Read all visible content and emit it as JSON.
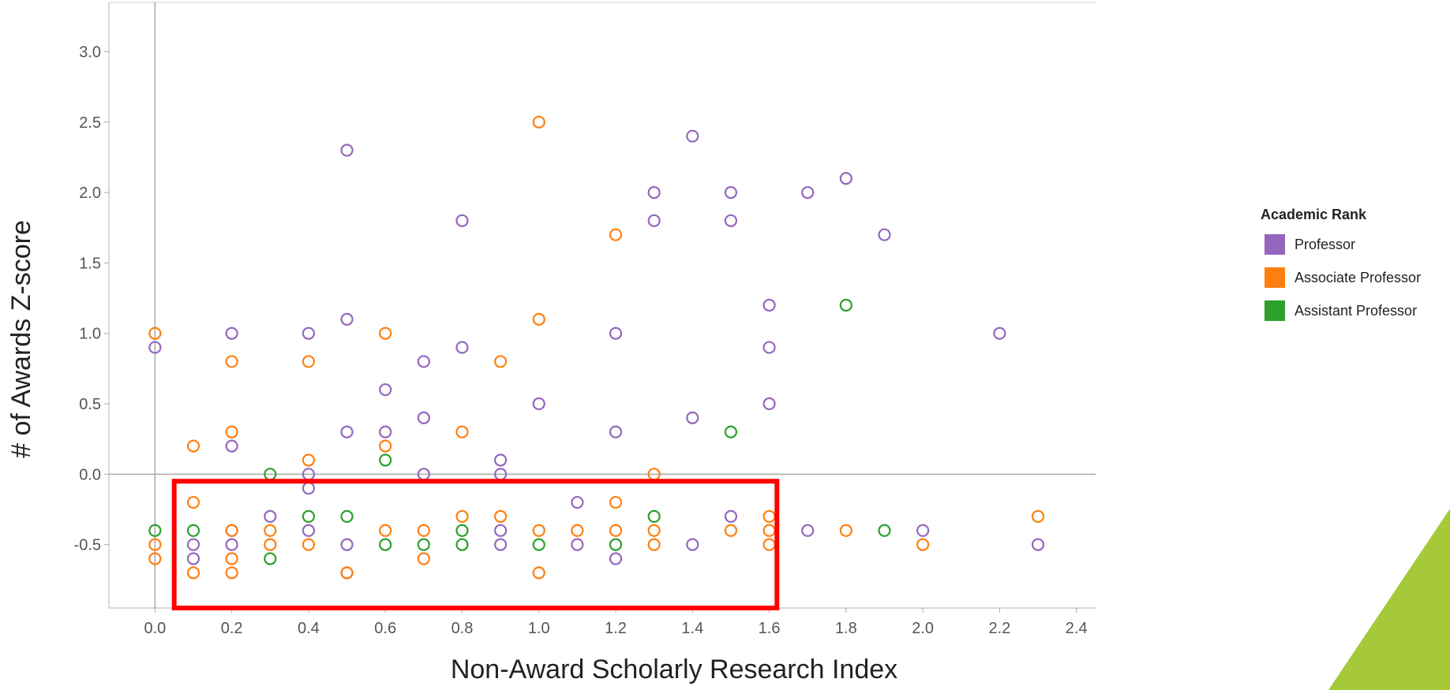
{
  "chart_data": {
    "type": "scatter",
    "title": "",
    "xlabel": "Non-Award Scholarly Research Index",
    "ylabel": "# of Awards Z-score",
    "xlim": [
      -0.12,
      2.45
    ],
    "ylim": [
      -0.95,
      3.35
    ],
    "x_ticks": [
      "0.0",
      "0.2",
      "0.4",
      "0.6",
      "0.8",
      "1.0",
      "1.2",
      "1.4",
      "1.6",
      "1.8",
      "2.0",
      "2.2",
      "2.4"
    ],
    "y_ticks": [
      "3.0",
      "2.5",
      "2.0",
      "1.5",
      "1.0",
      "0.5",
      "0.0",
      "-0.5"
    ],
    "grid": false,
    "reference_lines": {
      "x": 0,
      "y": 0
    },
    "legend": {
      "title": "Academic Rank",
      "position": "right",
      "items": [
        {
          "name": "Professor",
          "color": "#9467bd"
        },
        {
          "name": "Associate Professor",
          "color": "#ff7f0e"
        },
        {
          "name": "Assistant Professor",
          "color": "#2ca02c"
        }
      ]
    },
    "highlight_box": {
      "x": [
        0.05,
        1.62
      ],
      "y": [
        -0.95,
        -0.05
      ],
      "color": "#ff0000"
    },
    "series": [
      {
        "name": "Professor",
        "color": "#9467bd",
        "points": [
          [
            0.0,
            0.9
          ],
          [
            0.1,
            -0.5
          ],
          [
            0.1,
            -0.6
          ],
          [
            0.2,
            1.0
          ],
          [
            0.2,
            0.2
          ],
          [
            0.2,
            -0.4
          ],
          [
            0.2,
            -0.5
          ],
          [
            0.3,
            -0.3
          ],
          [
            0.4,
            1.0
          ],
          [
            0.4,
            0.0
          ],
          [
            0.4,
            -0.1
          ],
          [
            0.4,
            -0.4
          ],
          [
            0.5,
            2.3
          ],
          [
            0.5,
            1.1
          ],
          [
            0.5,
            0.3
          ],
          [
            0.5,
            -0.5
          ],
          [
            0.5,
            -0.7
          ],
          [
            0.6,
            0.6
          ],
          [
            0.6,
            0.3
          ],
          [
            0.7,
            0.8
          ],
          [
            0.7,
            0.4
          ],
          [
            0.7,
            0.0
          ],
          [
            0.8,
            1.8
          ],
          [
            0.8,
            0.9
          ],
          [
            0.9,
            0.1
          ],
          [
            0.9,
            0.0
          ],
          [
            0.9,
            -0.4
          ],
          [
            0.9,
            -0.5
          ],
          [
            1.0,
            0.5
          ],
          [
            1.1,
            -0.2
          ],
          [
            1.1,
            -0.5
          ],
          [
            1.2,
            1.0
          ],
          [
            1.2,
            0.3
          ],
          [
            1.2,
            -0.6
          ],
          [
            1.3,
            2.0
          ],
          [
            1.3,
            1.8
          ],
          [
            1.4,
            2.4
          ],
          [
            1.4,
            0.4
          ],
          [
            1.4,
            -0.5
          ],
          [
            1.5,
            2.0
          ],
          [
            1.5,
            1.8
          ],
          [
            1.5,
            -0.3
          ],
          [
            1.6,
            1.2
          ],
          [
            1.6,
            0.9
          ],
          [
            1.6,
            0.5
          ],
          [
            1.7,
            2.0
          ],
          [
            1.7,
            -0.4
          ],
          [
            1.8,
            2.1
          ],
          [
            1.9,
            1.7
          ],
          [
            2.0,
            -0.4
          ],
          [
            2.2,
            1.0
          ],
          [
            2.3,
            -0.5
          ]
        ]
      },
      {
        "name": "Associate Professor",
        "color": "#ff7f0e",
        "points": [
          [
            0.0,
            1.0
          ],
          [
            0.0,
            -0.5
          ],
          [
            0.0,
            -0.6
          ],
          [
            0.1,
            0.2
          ],
          [
            0.1,
            -0.2
          ],
          [
            0.1,
            -0.7
          ],
          [
            0.2,
            0.8
          ],
          [
            0.2,
            0.3
          ],
          [
            0.2,
            -0.4
          ],
          [
            0.2,
            -0.6
          ],
          [
            0.2,
            -0.7
          ],
          [
            0.3,
            -0.4
          ],
          [
            0.3,
            -0.5
          ],
          [
            0.4,
            0.8
          ],
          [
            0.4,
            0.1
          ],
          [
            0.4,
            -0.5
          ],
          [
            0.5,
            -0.7
          ],
          [
            0.6,
            1.0
          ],
          [
            0.6,
            0.2
          ],
          [
            0.6,
            -0.4
          ],
          [
            0.7,
            -0.4
          ],
          [
            0.7,
            -0.6
          ],
          [
            0.8,
            0.3
          ],
          [
            0.8,
            -0.3
          ],
          [
            0.9,
            0.8
          ],
          [
            0.9,
            -0.3
          ],
          [
            1.0,
            2.5
          ],
          [
            1.0,
            1.1
          ],
          [
            1.0,
            -0.4
          ],
          [
            1.0,
            -0.7
          ],
          [
            1.1,
            -0.4
          ],
          [
            1.2,
            1.7
          ],
          [
            1.2,
            -0.2
          ],
          [
            1.2,
            -0.4
          ],
          [
            1.3,
            0.0
          ],
          [
            1.3,
            -0.4
          ],
          [
            1.3,
            -0.5
          ],
          [
            1.5,
            -0.4
          ],
          [
            1.6,
            -0.3
          ],
          [
            1.6,
            -0.4
          ],
          [
            1.6,
            -0.5
          ],
          [
            1.8,
            -0.4
          ],
          [
            2.0,
            -0.5
          ],
          [
            2.3,
            -0.3
          ]
        ]
      },
      {
        "name": "Assistant Professor",
        "color": "#2ca02c",
        "points": [
          [
            0.0,
            -0.4
          ],
          [
            0.1,
            -0.4
          ],
          [
            0.3,
            0.0
          ],
          [
            0.3,
            -0.6
          ],
          [
            0.4,
            -0.3
          ],
          [
            0.5,
            -0.3
          ],
          [
            0.6,
            0.1
          ],
          [
            0.6,
            -0.5
          ],
          [
            0.7,
            -0.5
          ],
          [
            0.8,
            -0.4
          ],
          [
            0.8,
            -0.5
          ],
          [
            1.0,
            -0.5
          ],
          [
            1.2,
            -0.5
          ],
          [
            1.3,
            -0.3
          ],
          [
            1.5,
            0.3
          ],
          [
            1.8,
            1.2
          ],
          [
            1.9,
            -0.4
          ]
        ]
      }
    ]
  },
  "decoration": {
    "corner_triangle_color": "#a6c93a"
  }
}
